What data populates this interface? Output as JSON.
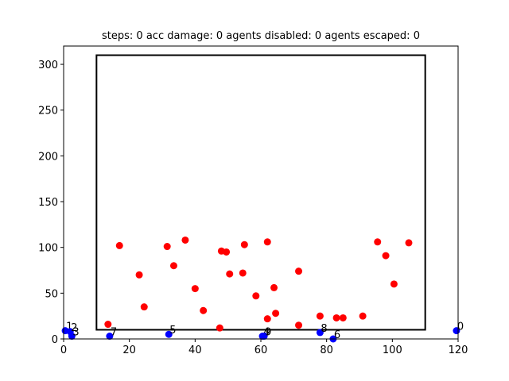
{
  "chart_data": {
    "type": "scatter",
    "title": "steps: 0   acc damage: 0   agents disabled: 0   agents escaped: 0",
    "xlabel": "",
    "ylabel": "",
    "xlim": [
      0,
      120
    ],
    "ylim": [
      0,
      320
    ],
    "xticks": [
      0,
      20,
      40,
      60,
      80,
      100,
      120
    ],
    "yticks": [
      0,
      50,
      100,
      150,
      200,
      250,
      300
    ],
    "grid": false,
    "region": {
      "x0": 10,
      "y0": 10,
      "x1": 110,
      "y1": 310,
      "color": "#000000"
    },
    "series": [
      {
        "color": "#ff0000",
        "points": [
          [
            13.5,
            16
          ],
          [
            17,
            102
          ],
          [
            23,
            70
          ],
          [
            24.5,
            35
          ],
          [
            31.5,
            101
          ],
          [
            33.5,
            80
          ],
          [
            37,
            108
          ],
          [
            40,
            55
          ],
          [
            42.5,
            31
          ],
          [
            47.5,
            12
          ],
          [
            48,
            96
          ],
          [
            49.5,
            95
          ],
          [
            50.5,
            71
          ],
          [
            54.5,
            72
          ],
          [
            55,
            103
          ],
          [
            58.5,
            47
          ],
          [
            62,
            106
          ],
          [
            62,
            22
          ],
          [
            64,
            56
          ],
          [
            64.5,
            28
          ],
          [
            71.5,
            74
          ],
          [
            71.5,
            15
          ],
          [
            78,
            25
          ],
          [
            83,
            23
          ],
          [
            85,
            23
          ],
          [
            91,
            25
          ],
          [
            95.5,
            106
          ],
          [
            98,
            91
          ],
          [
            100.5,
            60
          ],
          [
            105,
            105
          ]
        ]
      },
      {
        "color": "#0000ff",
        "points": [
          {
            "x": 0.5,
            "y": 9,
            "label": "1"
          },
          {
            "x": 2,
            "y": 8,
            "label": "2"
          },
          {
            "x": 2.5,
            "y": 3,
            "label": "3"
          },
          {
            "x": 14,
            "y": 3,
            "label": "7"
          },
          {
            "x": 32,
            "y": 5,
            "label": "5"
          },
          {
            "x": 60.5,
            "y": 3,
            "label": "4"
          },
          {
            "x": 61,
            "y": 3,
            "label": "9"
          },
          {
            "x": 78,
            "y": 7,
            "label": "8"
          },
          {
            "x": 82,
            "y": 0,
            "label": "6"
          },
          {
            "x": 119.5,
            "y": 9,
            "label": "0"
          }
        ]
      }
    ]
  }
}
